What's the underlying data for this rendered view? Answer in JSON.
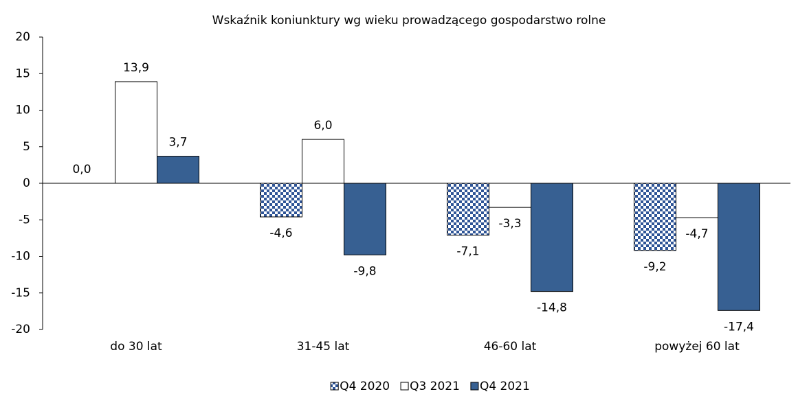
{
  "chart_data": {
    "type": "bar",
    "title": "Wskaźnik koniunktury wg wieku prowadzącego gospodarstwo rolne",
    "categories": [
      "do 30 lat",
      "31-45 lat",
      "46-60 lat",
      "powyżej 60 lat"
    ],
    "series": [
      {
        "name": "Q4 2020",
        "color": "#2f5597",
        "pattern": "checker",
        "values": [
          0.0,
          -4.6,
          -7.1,
          -9.2
        ],
        "value_labels": [
          "0,0",
          "-4,6",
          "-7,1",
          "-9,2"
        ]
      },
      {
        "name": "Q3 2021",
        "color": "#ffffff",
        "values": [
          13.9,
          6.0,
          -3.3,
          -4.7
        ],
        "value_labels": [
          "13,9",
          "6,0",
          "-3,3",
          "-4,7"
        ]
      },
      {
        "name": "Q4 2021",
        "color": "#376092",
        "values": [
          3.7,
          -9.8,
          -14.8,
          -17.4
        ],
        "value_labels": [
          "3,7",
          "-9,8",
          "-14,8",
          "-17,4"
        ]
      }
    ],
    "ylim": [
      -20,
      20
    ],
    "yticks": [
      20,
      15,
      10,
      5,
      0,
      -5,
      -10,
      -15,
      -20
    ],
    "legend": "bottom"
  }
}
